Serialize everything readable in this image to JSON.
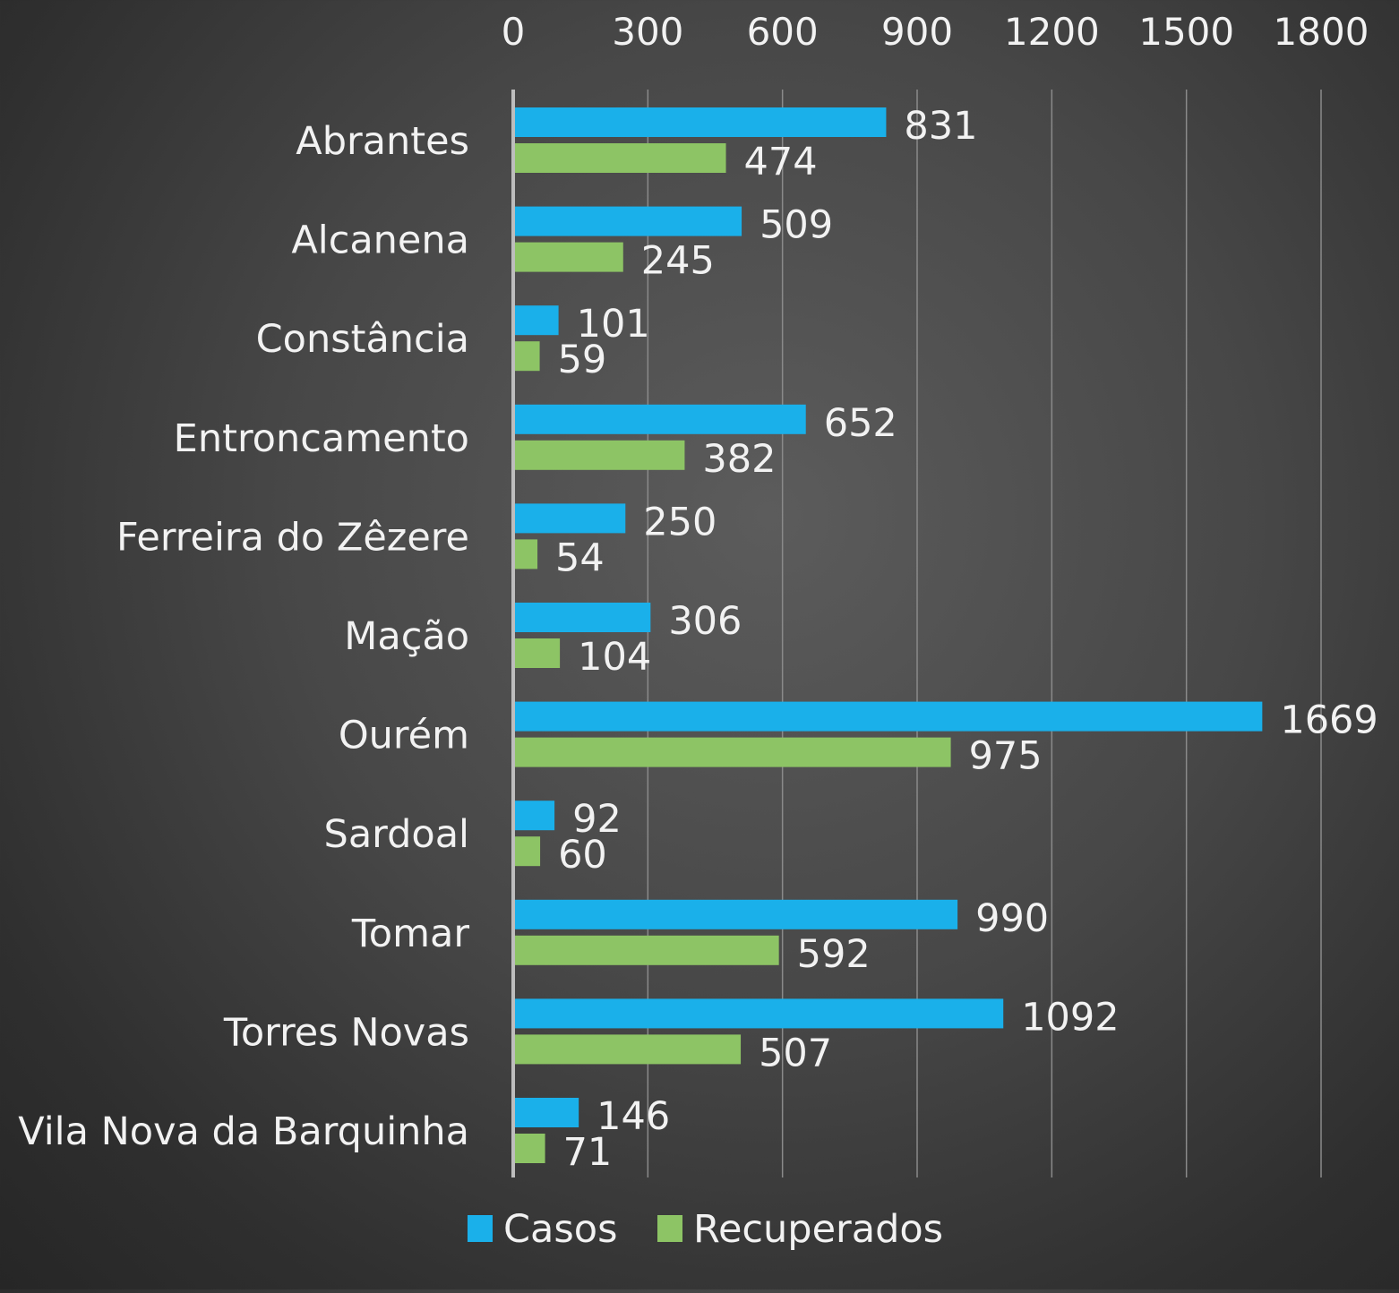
{
  "chart_data": {
    "type": "bar",
    "orientation": "horizontal",
    "title": "",
    "xlabel": "",
    "ylabel": "",
    "categories": [
      "Abrantes",
      "Alcanena",
      "Constância",
      "Entroncamento",
      "Ferreira do Zêzere",
      "Mação",
      "Ourém",
      "Sardoal",
      "Tomar",
      "Torres Novas",
      "Vila Nova da Barquinha"
    ],
    "series": [
      {
        "name": "Casos",
        "color": "#1ab0ea",
        "values": [
          831,
          509,
          101,
          652,
          250,
          306,
          1669,
          92,
          990,
          1092,
          146
        ]
      },
      {
        "name": "Recuperados",
        "color": "#8dc465",
        "values": [
          474,
          245,
          59,
          382,
          54,
          104,
          975,
          60,
          592,
          507,
          71
        ]
      }
    ],
    "xlim": [
      0,
      1800
    ],
    "xticks": [
      0,
      300,
      600,
      900,
      1200,
      1500,
      1800
    ],
    "x_axis_position": "top",
    "grid": true,
    "legend": "bottom",
    "data_labels": true,
    "colors": {
      "text": "#f2f2f2",
      "gridline": "#8a8a8a",
      "axis_line": "#bdbdbd"
    }
  }
}
